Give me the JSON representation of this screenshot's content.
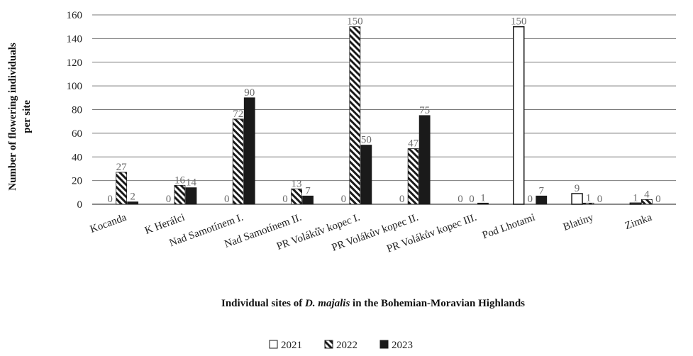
{
  "chart_data": {
    "type": "bar",
    "title": "",
    "xlabel_parts": [
      {
        "text": "Individual sites of ",
        "italic": false
      },
      {
        "text": "D. majalis",
        "italic": true
      },
      {
        "text": " in the Bohemian-Moravian Highlands",
        "italic": false
      }
    ],
    "ylabel_lines": [
      "Number of flowering individuals",
      "per site"
    ],
    "ylim": [
      0,
      160
    ],
    "yticks": [
      0,
      20,
      40,
      60,
      80,
      100,
      120,
      140,
      160
    ],
    "grid": true,
    "legend_position": "bottom-center",
    "categories": [
      "Kocanda",
      "K Herálci",
      "Nad Samotínem I.",
      "Nad Samotínem II.",
      "PR Voláků̊v kopec I.",
      "PR Volákův kopec II.",
      "PR Volákův kopec III.",
      "Pod Lhotami",
      "Blatiny",
      "Zimka"
    ],
    "series": [
      {
        "name": "2021",
        "values": [
          0,
          0,
          0,
          0,
          0,
          0,
          0,
          150,
          9,
          1
        ],
        "labels": [
          "0",
          "0",
          "0",
          "0",
          "0",
          "0",
          "0",
          "150",
          "9",
          "1"
        ],
        "style": "white",
        "color": "#ffffff"
      },
      {
        "name": "2022",
        "values": [
          27,
          16,
          72,
          13,
          150,
          47,
          0,
          0,
          1,
          4
        ],
        "labels": [
          "27",
          "16",
          "72",
          "13",
          "150",
          "47",
          "0",
          "0",
          "1",
          "4"
        ],
        "style": "hatch",
        "color": "#1a1a1a"
      },
      {
        "name": "2023",
        "values": [
          2,
          14,
          90,
          7,
          50,
          75,
          1,
          7,
          0,
          0
        ],
        "labels": [
          "2",
          "14",
          "90",
          "7",
          "50",
          "75",
          "1",
          "7",
          "0",
          "0"
        ],
        "style": "solid",
        "color": "#1a1a1a"
      }
    ]
  }
}
